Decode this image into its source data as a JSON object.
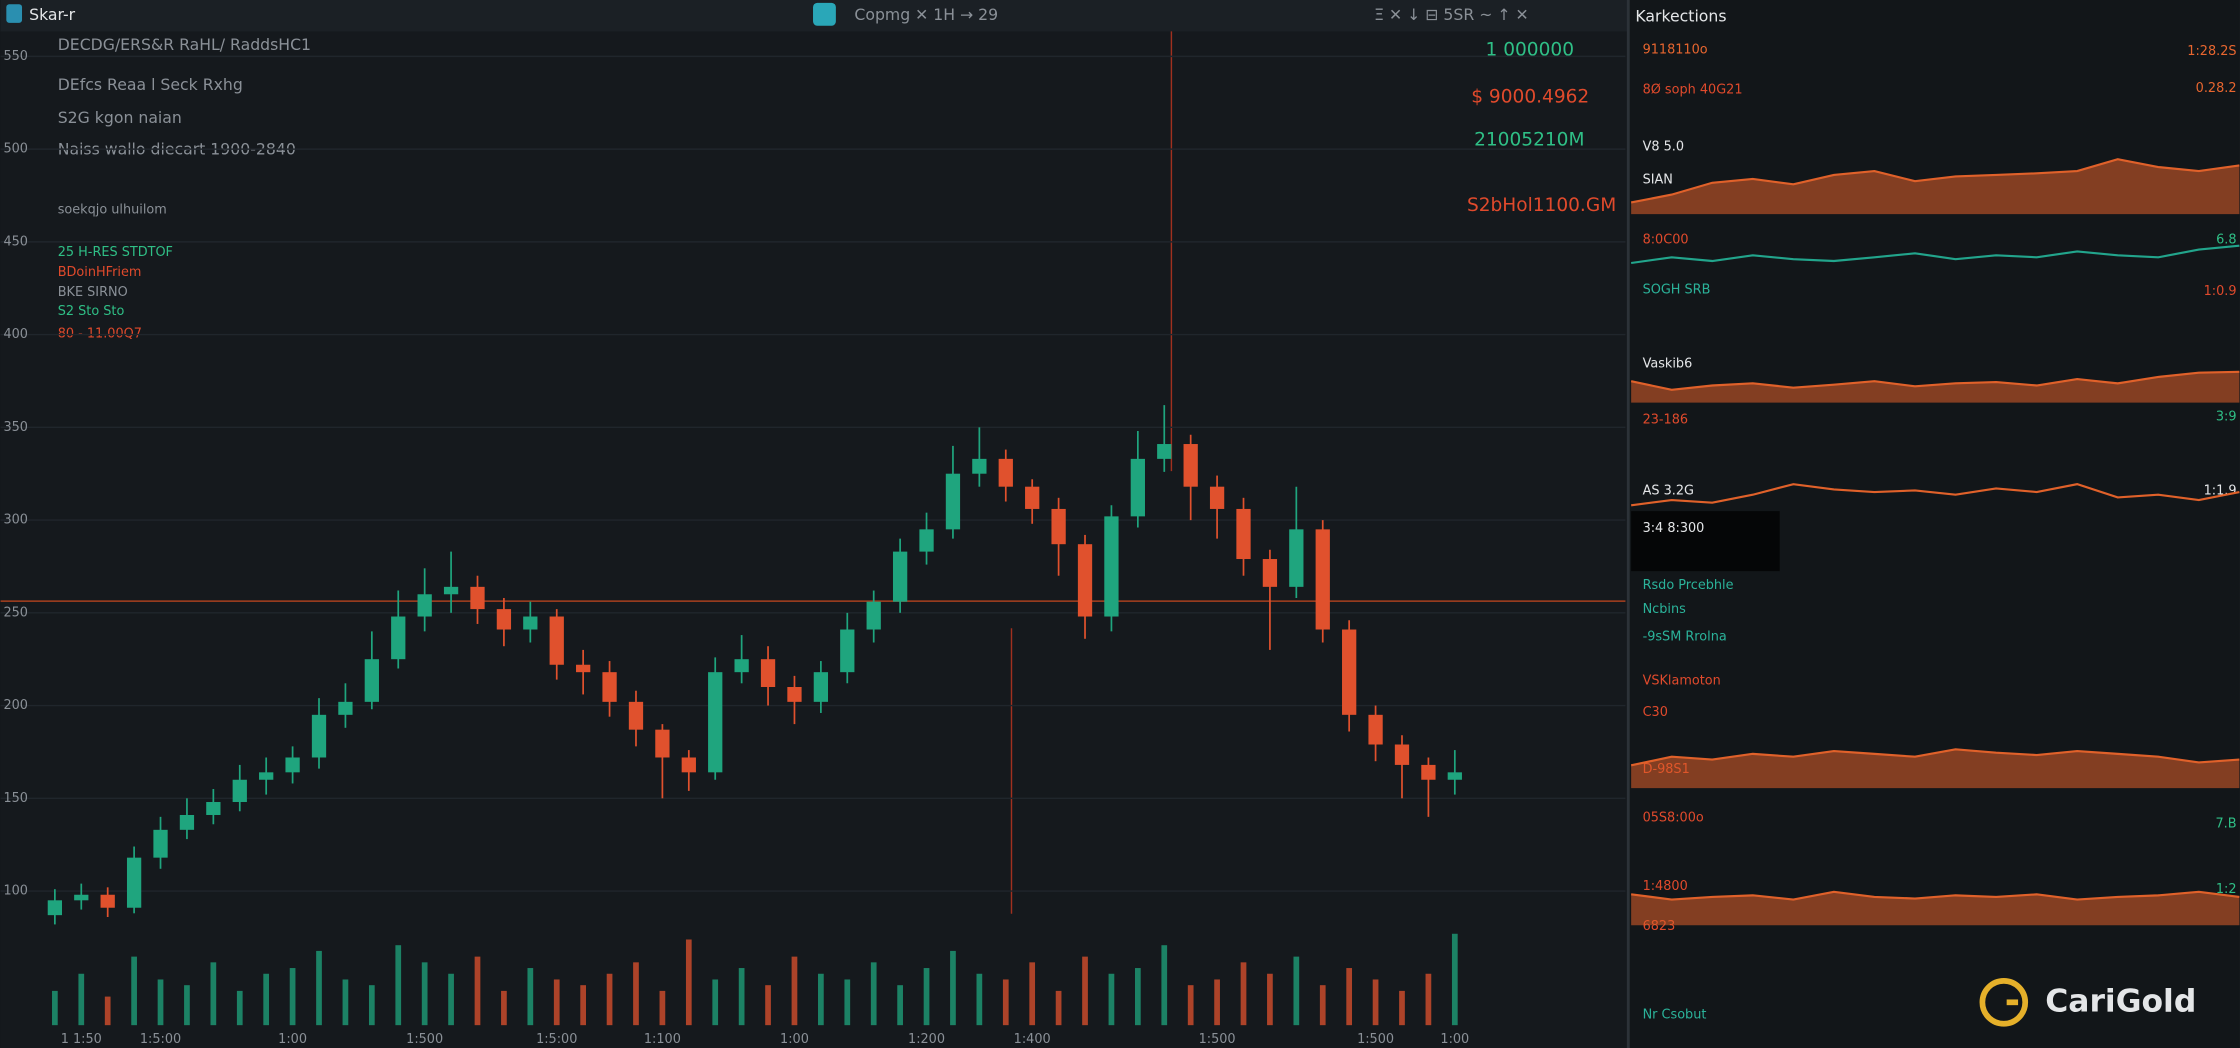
{
  "header": {
    "app": "Skar-r",
    "symbol": "Copmg ✕ 1H → 29",
    "tools": "Ξ  ✕  ↓  ⊟ 5SR  ~  ↑  ✕"
  },
  "info_panel": [
    "DECDG/ERS&R  RaHL/ RaddsHC1",
    "DEfcs Reaa  l Seck Rxhg",
    "S2G kgon naian",
    "Naiss wallo diecart 1900-2840",
    "soekqjo ulhuilom",
    "25 H-RES STDTOF",
    "BDoinHFriem",
    "BKE SIRNO",
    "S2 Sto Sto",
    "80  -  11.00Q7"
  ],
  "price_badges": [
    "1 000000",
    "$ 9000.4962",
    "21005210M",
    "S2bHol1100.GM"
  ],
  "chart_data": {
    "type": "candlestick",
    "categories": [
      null,
      "1 1:50",
      null,
      null,
      "1:5:00",
      null,
      null,
      null,
      null,
      "1:00",
      null,
      null,
      null,
      null,
      "1:500",
      null,
      null,
      null,
      null,
      "1:5:00",
      null,
      null,
      null,
      "1:100",
      null,
      null,
      null,
      null,
      "1:00",
      null,
      null,
      null,
      null,
      "1:200",
      null,
      null,
      null,
      "1:400",
      null,
      null,
      null,
      null,
      null,
      null,
      "1:500",
      null,
      null,
      null,
      null,
      null,
      "1:500",
      null,
      null,
      "1:00"
    ],
    "open": [
      87,
      95,
      98,
      91,
      118,
      133,
      141,
      148,
      160,
      164,
      172,
      195,
      202,
      225,
      248,
      260,
      264,
      252,
      241,
      248,
      222,
      218,
      202,
      187,
      172,
      164,
      218,
      225,
      210,
      202,
      218,
      241,
      256,
      283,
      295,
      325,
      333,
      318,
      306,
      287,
      248,
      302,
      333,
      341,
      318,
      306,
      279,
      264,
      295,
      241,
      195,
      179,
      168,
      160
    ],
    "high": [
      101,
      104,
      102,
      124,
      140,
      150,
      155,
      168,
      172,
      178,
      204,
      212,
      240,
      262,
      274,
      283,
      270,
      258,
      256,
      252,
      230,
      224,
      208,
      190,
      176,
      226,
      238,
      232,
      216,
      224,
      250,
      262,
      290,
      304,
      340,
      350,
      338,
      322,
      312,
      292,
      308,
      348,
      362,
      346,
      324,
      312,
      284,
      318,
      300,
      246,
      200,
      184,
      172,
      176
    ],
    "low": [
      82,
      90,
      86,
      88,
      112,
      128,
      136,
      143,
      152,
      158,
      166,
      188,
      198,
      220,
      240,
      250,
      244,
      232,
      234,
      214,
      206,
      194,
      178,
      150,
      154,
      160,
      212,
      200,
      190,
      196,
      212,
      234,
      250,
      276,
      290,
      318,
      310,
      298,
      270,
      236,
      240,
      296,
      326,
      300,
      290,
      270,
      230,
      258,
      234,
      186,
      170,
      150,
      140,
      152
    ],
    "close": [
      95,
      98,
      91,
      118,
      133,
      141,
      148,
      160,
      164,
      172,
      195,
      202,
      225,
      248,
      260,
      264,
      252,
      241,
      248,
      222,
      218,
      202,
      187,
      172,
      164,
      218,
      225,
      210,
      202,
      218,
      241,
      256,
      283,
      295,
      325,
      333,
      318,
      306,
      287,
      248,
      302,
      333,
      341,
      318,
      306,
      279,
      264,
      295,
      241,
      195,
      179,
      168,
      160,
      164
    ],
    "volume": [
      30,
      45,
      25,
      60,
      40,
      35,
      55,
      30,
      45,
      50,
      65,
      40,
      35,
      70,
      55,
      45,
      60,
      30,
      50,
      40,
      35,
      45,
      55,
      30,
      75,
      40,
      50,
      35,
      60,
      45,
      40,
      55,
      35,
      50,
      65,
      45,
      40,
      55,
      30,
      60,
      45,
      50,
      70,
      35,
      40,
      55,
      45,
      60,
      35,
      50,
      40,
      30,
      45,
      80
    ],
    "volume_ylim": [
      0,
      100
    ],
    "up_color": "#1fa57e",
    "down_color": "#e0512d",
    "ylim": [
      30,
      565
    ],
    "yticks": [
      100,
      150,
      200,
      250,
      300,
      350,
      400,
      450,
      500,
      550
    ],
    "grid": true
  },
  "side_panel": {
    "title": "Karkections",
    "labels": [
      "9118110o",
      "8Ø soph 40G21",
      "V8 5.0",
      "SIAN",
      "8:0C00",
      "SOGH SRB",
      "Vaskib6",
      "23-186",
      "AS 3.2G",
      "3:4 8:300",
      "Rsdo Prcebhle",
      "Ncbins",
      "-9sSM  Rrolna",
      "VSKlamoton",
      "C30",
      "D-98S1",
      "05S8:00o",
      "1:4800",
      "6823",
      "Nr Csobut"
    ],
    "right_labels": [
      "1:28.2S",
      "0.28.2",
      "6.8",
      "1:0.9",
      "3:9",
      "1:1.9",
      "7.B",
      "1:2"
    ],
    "sparklines": [
      {
        "kind": "area",
        "color": "#e0612a",
        "ylim": [
          0,
          100
        ],
        "values": [
          15,
          25,
          40,
          45,
          38,
          50,
          55,
          42,
          48,
          50,
          52,
          55,
          70,
          60,
          55,
          62
        ]
      },
      {
        "kind": "line",
        "color": "#22a58c",
        "ylim": [
          0,
          100
        ],
        "values": [
          40,
          55,
          45,
          60,
          50,
          45,
          55,
          65,
          50,
          60,
          55,
          70,
          60,
          55,
          75,
          85
        ]
      },
      {
        "kind": "area",
        "color": "#e0612a",
        "ylim": [
          0,
          100
        ],
        "values": [
          50,
          30,
          40,
          45,
          35,
          42,
          50,
          38,
          45,
          48,
          40,
          55,
          45,
          60,
          70,
          72
        ]
      },
      {
        "kind": "line",
        "color": "#e0612a",
        "ylim": [
          0,
          100
        ],
        "values": [
          30,
          40,
          35,
          50,
          70,
          60,
          55,
          58,
          50,
          62,
          55,
          70,
          45,
          50,
          40,
          55
        ]
      },
      {
        "kind": "area",
        "color": "#e0612a",
        "ylim": [
          0,
          100
        ],
        "values": [
          40,
          55,
          50,
          60,
          55,
          65,
          60,
          55,
          68,
          62,
          58,
          65,
          60,
          55,
          45,
          50
        ]
      },
      {
        "kind": "area",
        "color": "#e0612a",
        "ylim": [
          0,
          100
        ],
        "values": [
          60,
          50,
          55,
          58,
          50,
          65,
          55,
          52,
          58,
          55,
          60,
          50,
          55,
          58,
          65,
          55
        ]
      }
    ]
  },
  "watermark": "CariGold"
}
